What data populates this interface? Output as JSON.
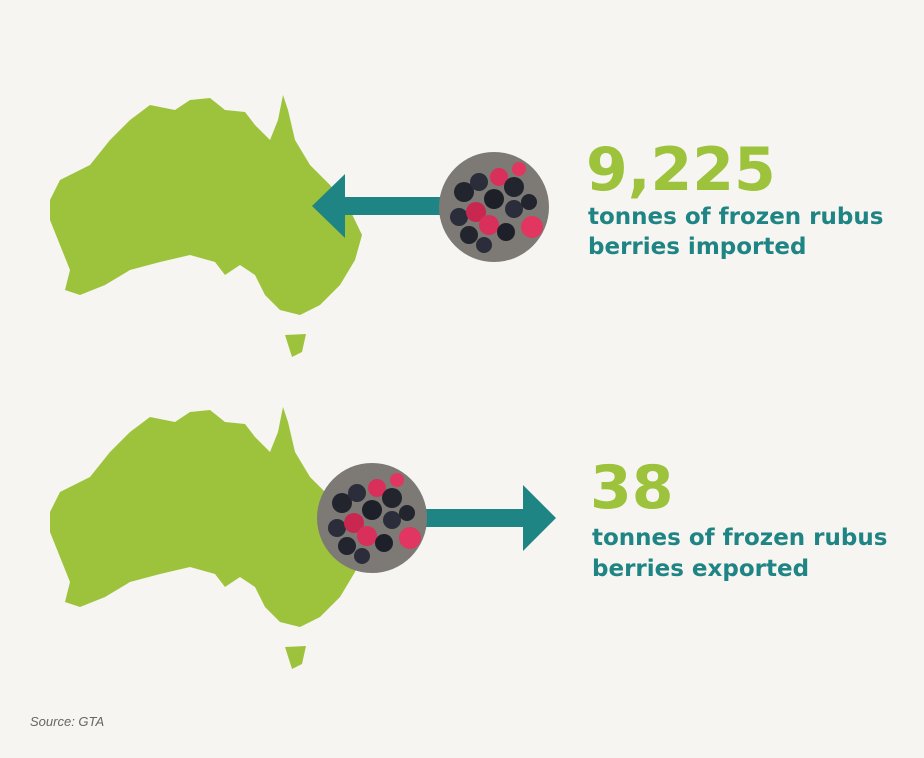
{
  "imported": {
    "value": "9,225",
    "label_lines": [
      "tonnes of frozen rubus",
      "berries imported"
    ]
  },
  "exported": {
    "value": "38",
    "label_lines": [
      "tonnes of frozen rubus",
      "berries exported"
    ]
  },
  "source": "Source: GTA"
}
